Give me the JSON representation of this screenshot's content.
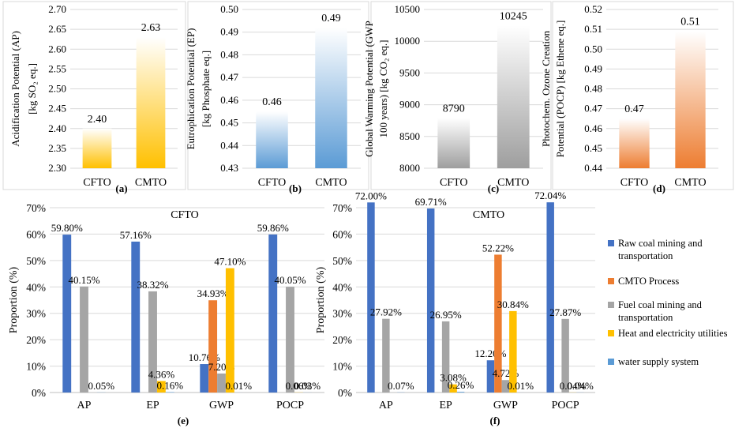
{
  "chart_data": [
    {
      "id": "a",
      "type": "bar",
      "panel_label": "(a)",
      "categories": [
        "CFTO",
        "CMTO"
      ],
      "values": [
        2.4,
        2.63
      ],
      "value_labels": [
        "2.40",
        "2.63"
      ],
      "ylabel_lines": [
        "Acidification Potential (AP)",
        "[kg SO₂ eq.]"
      ],
      "ylim": [
        2.3,
        2.7
      ],
      "ytick_step": 0.05,
      "ytick_decimals": 2,
      "bar_color": "#ffc000",
      "gradient": true
    },
    {
      "id": "b",
      "type": "bar",
      "panel_label": "(b)",
      "categories": [
        "CFTO",
        "CMTO"
      ],
      "values": [
        0.455,
        0.492
      ],
      "value_labels": [
        "0.46",
        "0.49"
      ],
      "ylabel_lines": [
        "Eutrophication Potential (EP)",
        "[kg Phosphate eq.]"
      ],
      "ylim": [
        0.43,
        0.5
      ],
      "ytick_step": 0.01,
      "ytick_decimals": 2,
      "bar_color": "#5b9bd5",
      "gradient": true
    },
    {
      "id": "c",
      "type": "bar",
      "panel_label": "(c)",
      "categories": [
        "CFTO",
        "CMTO"
      ],
      "values": [
        8790,
        10245
      ],
      "value_labels": [
        "8790",
        "10245"
      ],
      "ylabel_lines": [
        "Global Warming Potential (GWP",
        "100 years) [kg CO₂ eq.]"
      ],
      "ylim": [
        8000,
        10500
      ],
      "ytick_step": 500,
      "ytick_decimals": 0,
      "bar_color": "#9e9e9e",
      "gradient": true
    },
    {
      "id": "d",
      "type": "bar",
      "panel_label": "(d)",
      "categories": [
        "CFTO",
        "CMTO"
      ],
      "values": [
        0.465,
        0.509
      ],
      "value_labels": [
        "0.47",
        "0.51"
      ],
      "ylabel_lines": [
        "Photochem. Ozone Creation",
        "Potential (POCP) [kg Ethene eq.]"
      ],
      "ylim": [
        0.44,
        0.52
      ],
      "ytick_step": 0.01,
      "ytick_decimals": 2,
      "bar_color": "#ed7d31",
      "gradient": true
    },
    {
      "id": "e",
      "type": "bar",
      "panel_label": "(e)",
      "title": "CFTO",
      "categories": [
        "AP",
        "EP",
        "GWP",
        "POCP"
      ],
      "ylabel": "Proportion (%)",
      "ylim": [
        0,
        70
      ],
      "ytick_step": 10,
      "percent_ticks": true,
      "series": [
        {
          "name": "Raw coal mining and transportation",
          "values": [
            59.8,
            57.16,
            10.76,
            59.86
          ],
          "labels": [
            "59.80%",
            "57.16%",
            "10.76%",
            "59.86%"
          ]
        },
        {
          "name": "CMTO Process",
          "values": [
            0,
            0,
            34.93,
            0
          ],
          "labels": [
            "",
            "",
            "34.93%",
            ""
          ]
        },
        {
          "name": "Fuel coal mining and transportation",
          "values": [
            40.15,
            38.32,
            7.2,
            40.05
          ],
          "labels": [
            "40.15%",
            "38.32%",
            "7.20%",
            "40.05%"
          ]
        },
        {
          "name": "Heat and electricity utilities",
          "values": [
            0,
            4.36,
            47.1,
            0.06
          ],
          "labels": [
            "",
            "4.36%",
            "47.10%",
            "0.06%"
          ]
        },
        {
          "name": "water supply system",
          "values": [
            0.05,
            0.16,
            0.01,
            0.03
          ],
          "labels": [
            "0.05%",
            "0.16%",
            "0.01%",
            "0.03%"
          ]
        }
      ]
    },
    {
      "id": "f",
      "type": "bar",
      "panel_label": "(f)",
      "title": "CMTO",
      "categories": [
        "AP",
        "EP",
        "GWP",
        "POCP"
      ],
      "ylabel": "Proportion (%)",
      "ylim": [
        0,
        70
      ],
      "ytick_step": 10,
      "percent_ticks": true,
      "series": [
        {
          "name": "Raw coal mining and transportation",
          "values": [
            72.0,
            69.71,
            12.2,
            72.04
          ],
          "labels": [
            "72.00%",
            "69.71%",
            "12.20%",
            "72.04%"
          ]
        },
        {
          "name": "CMTO Process",
          "values": [
            0,
            0,
            52.22,
            0
          ],
          "labels": [
            "",
            "",
            "52.22%",
            ""
          ]
        },
        {
          "name": "Fuel coal mining and transportation",
          "values": [
            27.92,
            26.95,
            4.72,
            27.87
          ],
          "labels": [
            "27.92%",
            "26.95%",
            "4.72%",
            "27.87%"
          ]
        },
        {
          "name": "Heat and electricity utilities",
          "values": [
            0,
            3.08,
            30.84,
            0.04
          ],
          "labels": [
            "",
            "3.08%",
            "30.84%",
            "0.04%"
          ]
        },
        {
          "name": "water supply system",
          "values": [
            0.07,
            0.26,
            0.01,
            0.04
          ],
          "labels": [
            "0.07%",
            "0.26%",
            "0.01%",
            "0.04%"
          ]
        }
      ]
    }
  ],
  "legend": {
    "items": [
      {
        "label": "Raw coal mining and transportation",
        "color": "#4472c4"
      },
      {
        "label": "CMTO Process",
        "color": "#ed7d31"
      },
      {
        "label": "Fuel coal mining and transportation",
        "color": "#a5a5a5"
      },
      {
        "label": "Heat and electricity utilities",
        "color": "#ffc000"
      },
      {
        "label": "water supply system",
        "color": "#5b9bd5"
      }
    ]
  }
}
